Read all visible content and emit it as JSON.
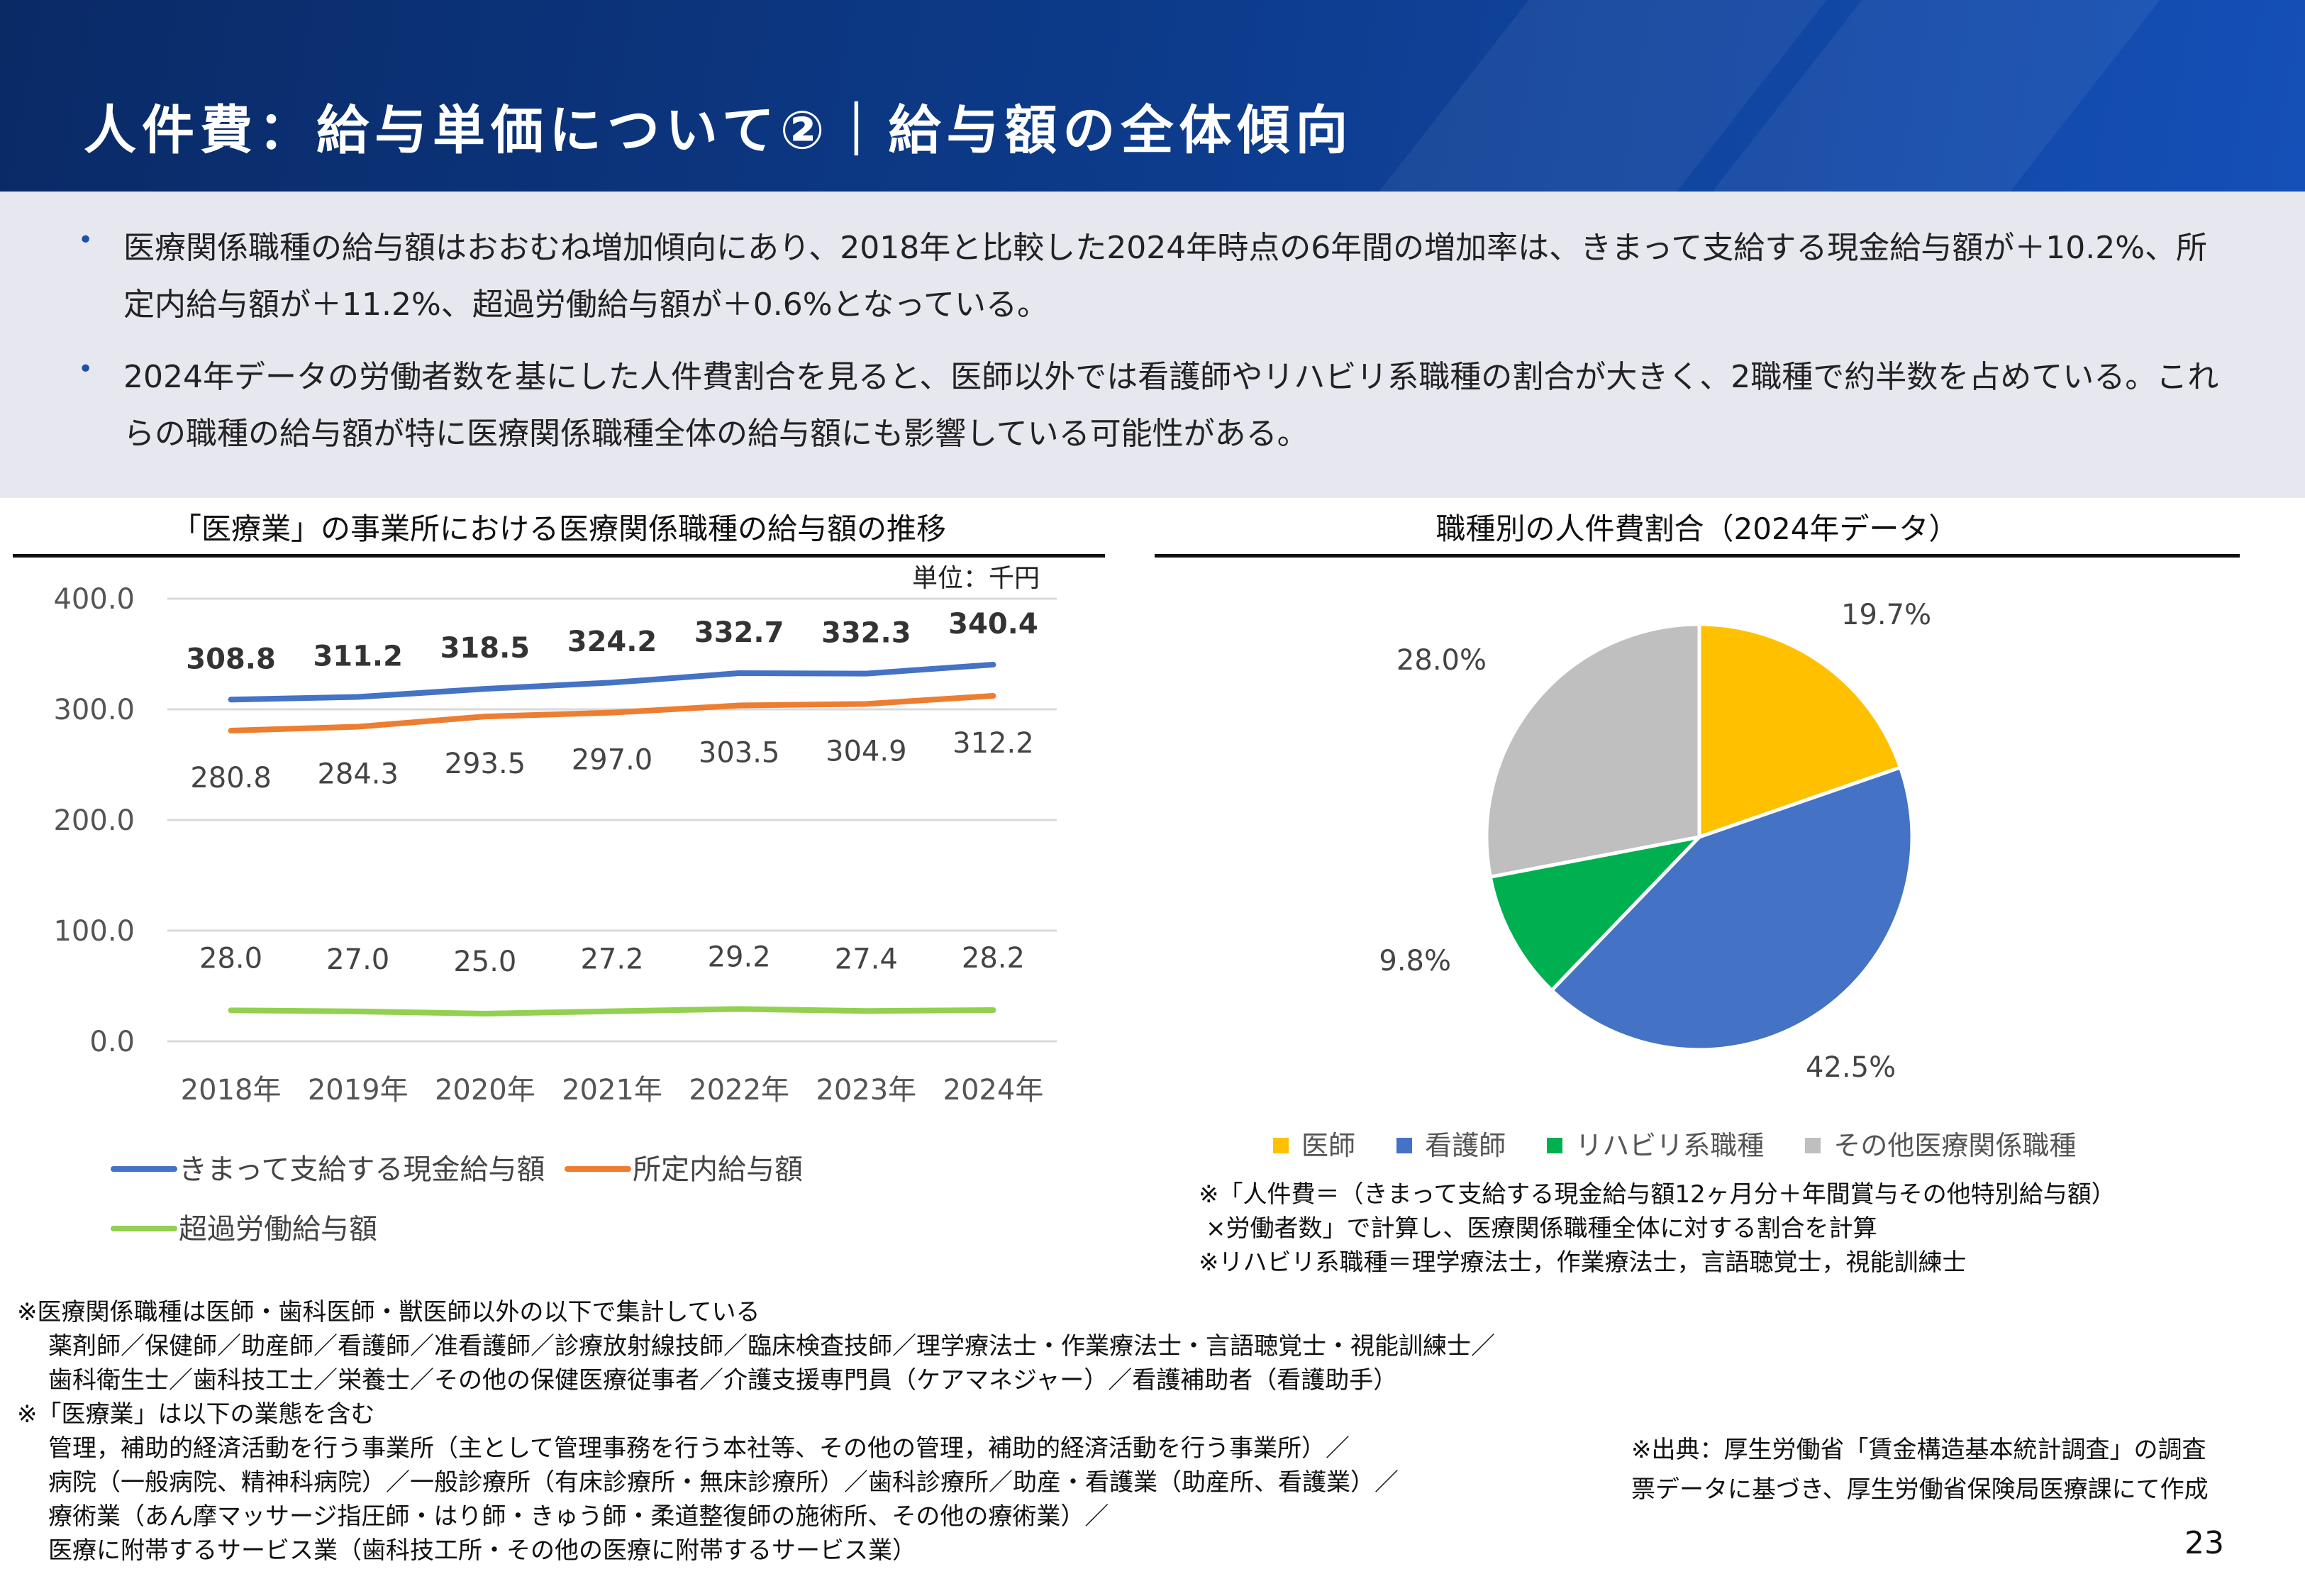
{
  "header": {
    "title": "人件費：給与単価について②｜給与額の全体傾向"
  },
  "summary": {
    "bullets": [
      "医療関係職種の給与額はおおむね増加傾向にあり、2018年と比較した2024年時点の6年間の増加率は、きまって支給する現金給与額が＋10.2%、所定内給与額が＋11.2%、超過労働給与額が＋0.6%となっている。",
      "2024年データの労働者数を基にした人件費割合を見ると、医師以外では看護師やリハビリ系職種の割合が大きく、2職種で約半数を占めている。これらの職種の給与額が特に医療関係職種全体の給与額にも影響している可能性がある。"
    ]
  },
  "chart_data": [
    {
      "type": "line",
      "title": "「医療業」の事業所における医療関係職種の給与額の推移",
      "unit": "単位：千円",
      "categories": [
        "2018年",
        "2019年",
        "2020年",
        "2021年",
        "2022年",
        "2023年",
        "2024年"
      ],
      "y_ticks": [
        "0.0",
        "100.0",
        "200.0",
        "300.0",
        "400.0"
      ],
      "ylim": [
        0,
        400
      ],
      "grid": true,
      "legend_position": "bottom",
      "series": [
        {
          "name": "きまって支給する現金給与額",
          "color": "#4472c4",
          "values": [
            308.8,
            311.2,
            318.5,
            324.2,
            332.7,
            332.3,
            340.4
          ],
          "labels": [
            "308.8",
            "311.2",
            "318.5",
            "324.2",
            "332.7",
            "332.3",
            "340.4"
          ]
        },
        {
          "name": "所定内給与額",
          "color": "#ed7d31",
          "values": [
            280.8,
            284.3,
            293.5,
            297.0,
            303.5,
            304.9,
            312.2
          ],
          "labels": [
            "280.8",
            "284.3",
            "293.5",
            "297.0",
            "303.5",
            "304.9",
            "312.2"
          ]
        },
        {
          "name": "超過労働給与額",
          "color": "#92d050",
          "values": [
            28.0,
            27.0,
            25.0,
            27.2,
            29.2,
            27.4,
            28.2
          ],
          "labels": [
            "28.0",
            "27.0",
            "25.0",
            "27.2",
            "29.2",
            "27.4",
            "28.2"
          ]
        }
      ]
    },
    {
      "type": "pie",
      "title": "職種別の人件費割合（2024年データ）",
      "legend_position": "bottom",
      "slices": [
        {
          "name": "医師",
          "value": 19.7,
          "label": "19.7%",
          "color": "#ffc000"
        },
        {
          "name": "看護師",
          "value": 42.5,
          "label": "42.5%",
          "color": "#4472c4"
        },
        {
          "name": "リハビリ系職種",
          "value": 9.8,
          "label": "9.8%",
          "color": "#00b050"
        },
        {
          "name": "その他医療関係職種",
          "value": 28.0,
          "label": "28.0%",
          "color": "#bfbfbf"
        }
      ]
    }
  ],
  "pie_notes": [
    "※「人件費＝（きまって支給する現金給与額12ヶ月分＋年間賞与その他特別給与額）",
    "×労働者数」で計算し、医療関係職種全体に対する割合を計算",
    "※リハビリ系職種＝理学療法士，作業療法士，言語聴覚士，視能訓練士"
  ],
  "footnotes": [
    "※医療関係職種は医師・歯科医師・獣医師以外の以下で集計している",
    "薬剤師／保健師／助産師／看護師／准看護師／診療放射線技師／臨床検査技師／理学療法士・作業療法士・言語聴覚士・視能訓練士／",
    "歯科衛生士／歯科技工士／栄養士／その他の保健医療従事者／介護支援専門員（ケアマネジャー）／看護補助者（看護助手）",
    "※「医療業」は以下の業態を含む",
    "管理，補助的経済活動を行う事業所（主として管理事務を行う本社等、その他の管理，補助的経済活動を行う事業所）／",
    "病院（一般病院、精神科病院）／一般診療所（有床診療所・無床診療所）／歯科診療所／助産・看護業（助産所、看護業）／",
    "療術業（あん摩マッサージ指圧師・はり師・きゅう師・柔道整復師の施術所、その他の療術業）／",
    "医療に附帯するサービス業（歯科技工所・その他の医療に附帯するサービス業）"
  ],
  "source": [
    "※出典：厚生労働省「賃金構造基本統計調査」の調査",
    "票データに基づき、厚生労働省保険局医療課にて作成"
  ],
  "page_number": "23"
}
